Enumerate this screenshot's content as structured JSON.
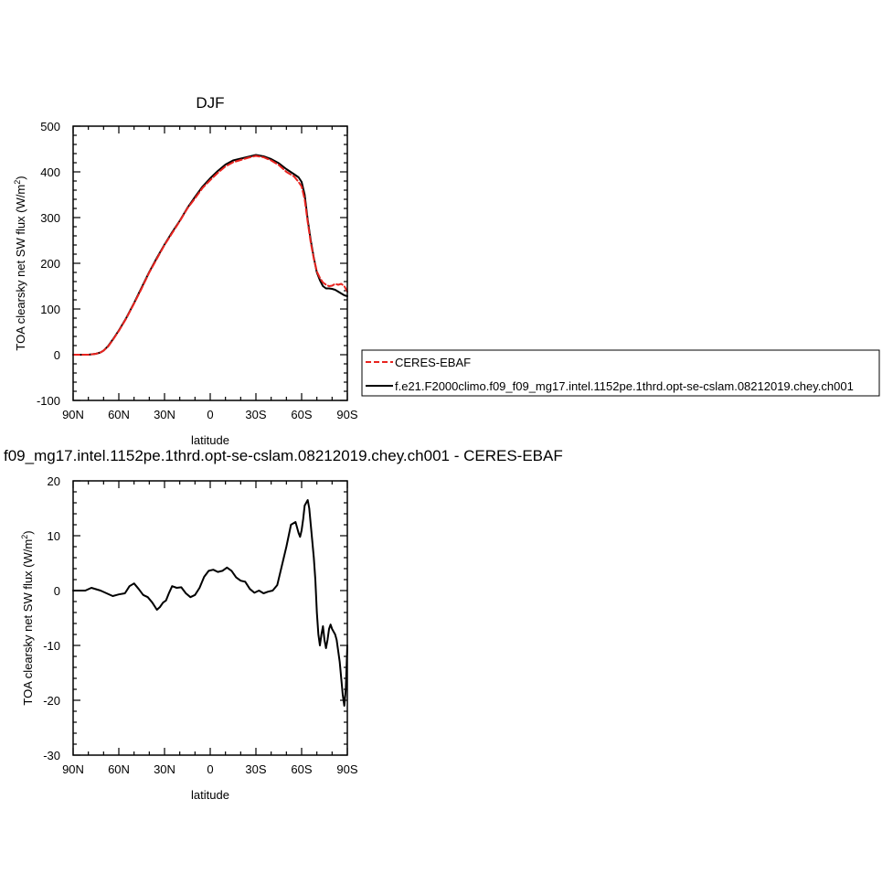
{
  "chart_data": [
    {
      "type": "line",
      "title": "DJF",
      "xlabel": "latitude",
      "ylabel_main": "TOA clearsky net SW flux (W/m",
      "ylabel_sup": "2",
      "ylabel_close": ")",
      "xlim": [
        90,
        -90
      ],
      "ylim": [
        -100,
        500
      ],
      "xticks": [
        90,
        60,
        30,
        0,
        -30,
        -60,
        -90
      ],
      "xtick_labels": [
        "90N",
        "60N",
        "30N",
        "0",
        "30S",
        "60S",
        "90S"
      ],
      "yticks": [
        -100,
        0,
        100,
        200,
        300,
        400,
        500
      ],
      "ytick_labels": [
        "-100",
        "0",
        "100",
        "200",
        "300",
        "400",
        "500"
      ],
      "legend_placement": "right",
      "series": [
        {
          "name": "CERES-EBAF",
          "color": "#e8231f",
          "dash": "dashed",
          "x": [
            90,
            85,
            80,
            75,
            72,
            70,
            67,
            64,
            60,
            55,
            50,
            45,
            40,
            35,
            30,
            25,
            20,
            15,
            10,
            5,
            0,
            -5,
            -10,
            -15,
            -20,
            -25,
            -30,
            -35,
            -40,
            -45,
            -50,
            -55,
            -58,
            -60,
            -62,
            -64,
            -66,
            -68,
            -70,
            -72,
            -74,
            -76,
            -78,
            -80,
            -82,
            -84,
            -86,
            -88,
            -90
          ],
          "y": [
            0,
            0,
            0,
            2,
            5,
            9,
            18,
            32,
            52,
            80,
            112,
            145,
            180,
            210,
            240,
            266,
            292,
            320,
            342,
            365,
            382,
            398,
            412,
            421,
            426,
            431,
            435,
            432,
            425,
            415,
            400,
            390,
            378,
            368,
            340,
            290,
            245,
            210,
            182,
            168,
            158,
            153,
            150,
            151,
            155,
            153,
            155,
            150,
            138
          ]
        },
        {
          "name": "f.e21.F2000climo.f09_f09_mg17.intel.1152pe.1thrd.opt-se-cslam.08212019.chey.ch001",
          "color": "#000000",
          "dash": "solid",
          "x": [
            90,
            85,
            80,
            75,
            72,
            70,
            67,
            64,
            60,
            55,
            50,
            45,
            40,
            35,
            30,
            25,
            20,
            15,
            10,
            5,
            0,
            -5,
            -10,
            -15,
            -20,
            -25,
            -30,
            -35,
            -40,
            -45,
            -50,
            -55,
            -58,
            -60,
            -62,
            -64,
            -66,
            -68,
            -70,
            -72,
            -74,
            -76,
            -78,
            -80,
            -82,
            -84,
            -86,
            -88,
            -90
          ],
          "y": [
            0,
            0,
            0,
            2,
            5,
            9,
            19,
            33,
            53,
            81,
            113,
            147,
            181,
            212,
            241,
            268,
            293,
            321,
            345,
            368,
            386,
            402,
            416,
            425,
            429,
            433,
            437,
            434,
            428,
            419,
            406,
            395,
            388,
            378,
            350,
            295,
            250,
            212,
            180,
            163,
            150,
            145,
            145,
            144,
            142,
            138,
            134,
            130,
            128
          ]
        }
      ]
    },
    {
      "type": "line",
      "title": "f09_mg17.intel.1152pe.1thrd.opt-se-cslam.08212019.chey.ch001 - CERES-EBAF",
      "xlabel": "latitude",
      "ylabel_main": "TOA clearsky net SW flux (W/m",
      "ylabel_sup": "2",
      "ylabel_close": ")",
      "xlim": [
        90,
        -90
      ],
      "ylim": [
        -30,
        20
      ],
      "xticks": [
        90,
        60,
        30,
        0,
        -30,
        -60,
        -90
      ],
      "xtick_labels": [
        "90N",
        "60N",
        "30N",
        "0",
        "30S",
        "60S",
        "90S"
      ],
      "yticks": [
        -30,
        -20,
        -10,
        0,
        10,
        20
      ],
      "ytick_labels": [
        "-30",
        "-20",
        "-10",
        "0",
        "10",
        "20"
      ],
      "series": [
        {
          "color": "#000000",
          "dash": "solid",
          "x": [
            90,
            82,
            78,
            72,
            68,
            64,
            60,
            56,
            53,
            50,
            47,
            44,
            41,
            38,
            35,
            33,
            31,
            29,
            27,
            25,
            22,
            19,
            16,
            13,
            10,
            7,
            4,
            1,
            -2,
            -5,
            -8,
            -11,
            -14,
            -17,
            -20,
            -23,
            -26,
            -29,
            -32,
            -35,
            -38,
            -41,
            -44,
            -47,
            -50,
            -53,
            -56,
            -58,
            -59,
            -60,
            -61,
            -62,
            -64,
            -65,
            -66,
            -67,
            -68,
            -69,
            -70,
            -71,
            -72,
            -73,
            -74,
            -75,
            -76,
            -77,
            -78,
            -79,
            -80,
            -81,
            -82,
            -83,
            -84,
            -85,
            -86,
            -87,
            -88,
            -89,
            -90
          ],
          "y": [
            0,
            0,
            0.5,
            0,
            -0.5,
            -1,
            -0.7,
            -0.5,
            0.8,
            1.3,
            0.3,
            -0.8,
            -1.2,
            -2.2,
            -3.5,
            -3,
            -2.2,
            -1.8,
            -0.4,
            0.8,
            0.5,
            0.6,
            -0.5,
            -1.2,
            -0.8,
            0.5,
            2.5,
            3.6,
            3.8,
            3.4,
            3.6,
            4.2,
            3.6,
            2.4,
            1.8,
            1.6,
            0.3,
            -0.4,
            0,
            -0.5,
            -0.2,
            0,
            1,
            4.5,
            8,
            12,
            12.5,
            10.5,
            9.8,
            11,
            13,
            15.5,
            16.5,
            15,
            12,
            9,
            6,
            2,
            -4,
            -8,
            -10,
            -8,
            -6.5,
            -9,
            -10.5,
            -9,
            -7,
            -6.2,
            -7,
            -7.5,
            -8,
            -9,
            -11,
            -13,
            -16,
            -19,
            -21,
            -18,
            -10
          ]
        }
      ]
    }
  ]
}
